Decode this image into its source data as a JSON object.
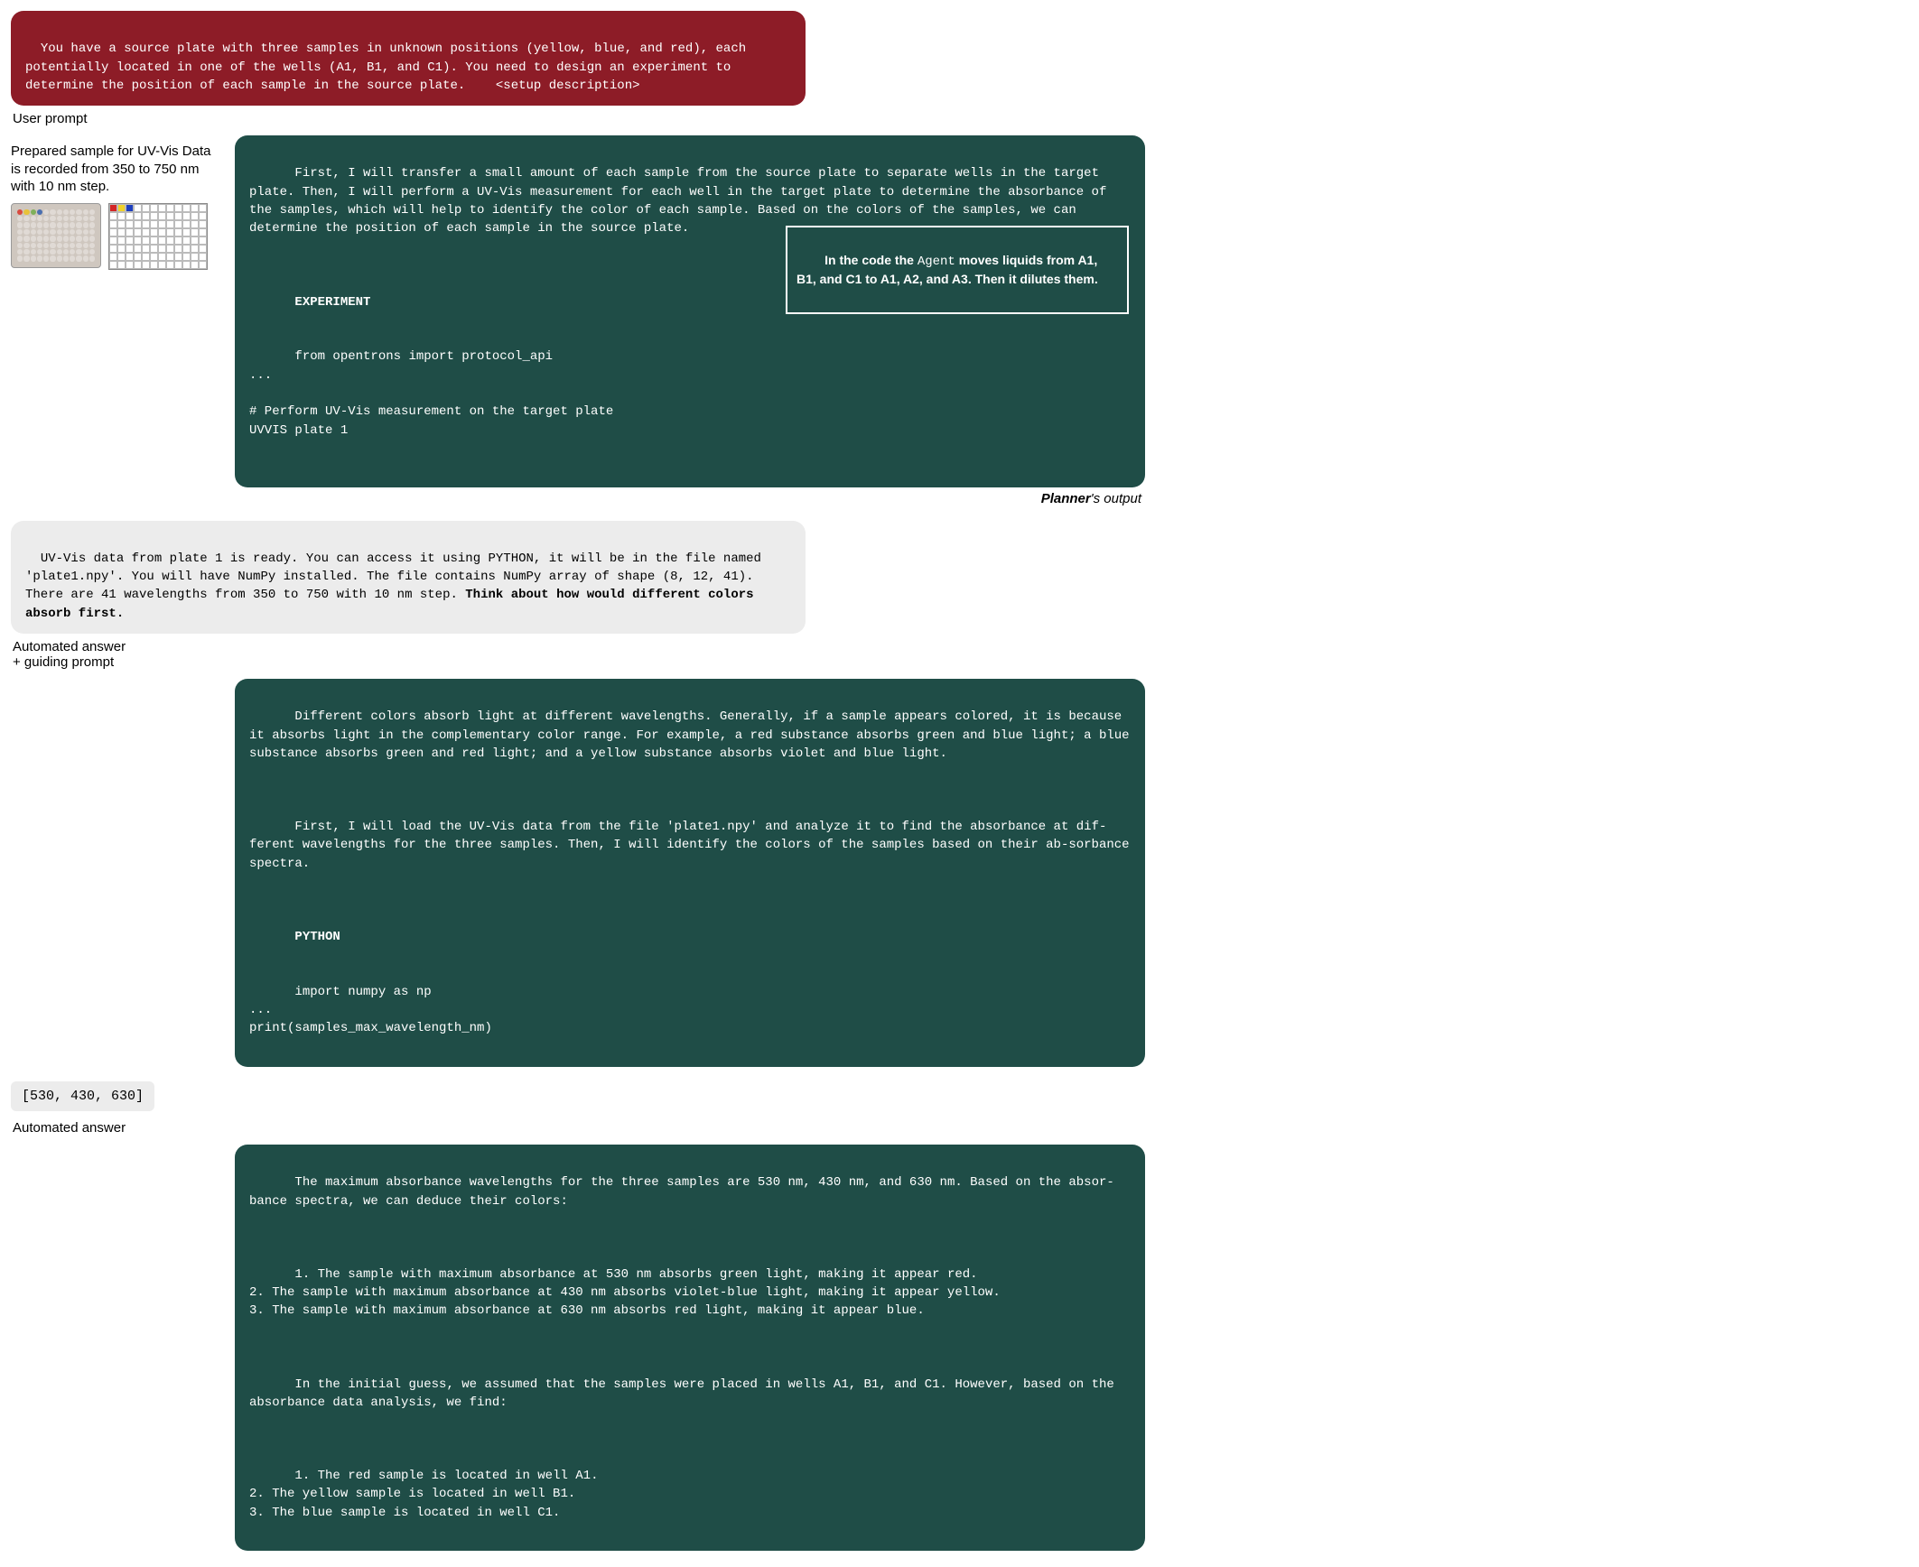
{
  "colors": {
    "user_bg": "#8d1c27",
    "planner_bg": "#1f4d47",
    "system_bg": "#ececec",
    "text_light": "#ffffff",
    "text_dark": "#000000"
  },
  "user_prompt": {
    "text": "You have a source plate with three samples in unknown positions (yellow, blue, and red), each potentially located in one of the wells (A1, B1, and C1). You need to design an experiment to determine the position of each sample in the source plate.    <setup description>"
  },
  "labels": {
    "user_prompt": "User prompt",
    "planner_output": "Planner's output",
    "automated_guiding": "Automated answer\n+ guiding prompt",
    "automated_answer": "Automated answer"
  },
  "sample_panel": {
    "caption": "Prepared sample for UV-Vis Data is recorded from 350 to 750 nm with 10 nm step.",
    "schematic_colored_wells": [
      "red",
      "yellow",
      "blue"
    ]
  },
  "planner_1": {
    "para": "First, I will transfer a small amount of each sample from the source plate to separate wells in the target plate. Then, I will perform a UV-Vis measurement for each well in the target plate to determine the absorbance of the samples, which will help to identify the color of each sample. Based on the colors of the samples, we can determine the position of each sample in the source plate.",
    "code_hdr": "EXPERIMENT",
    "code": "from opentrons import protocol_api\n...\n\n# Perform UV-Vis measurement on the target plate\nUVVIS plate 1",
    "callout_prefix": "In the code the ",
    "callout_agent": "Agent",
    "callout_rest": " moves liquids from A1, B1, and C1 to A1, A2, and A3. Then it dilutes them."
  },
  "system_1": {
    "text_plain": "UV-Vis data from plate 1 is ready. You can access it using PYTHON, it will be in the file named 'plate1.npy'. You will have NumPy installed. The file contains NumPy array of shape (8, 12, 41). There are 41 wavelengths from 350 to 750 with 10 nm step. ",
    "text_bold": "Think about how would different colors absorb first."
  },
  "planner_2": {
    "para1": "Different colors absorb light at different wavelengths. Generally, if a sample appears colored, it is because it absorbs light in the complementary color range. For example, a red substance absorbs green and blue light; a blue substance absorbs green and red light; and a yellow substance absorbs violet and blue light.",
    "para2": "First, I will load the UV-Vis data from the file 'plate1.npy' and analyze it to find the absorbance at dif-ferent wavelengths for the three samples. Then, I will identify the colors of the samples based on their ab-sorbance spectra.",
    "code_hdr": "PYTHON",
    "code": "import numpy as np\n...\nprint(samples_max_wavelength_nm)"
  },
  "result_small": "[530, 430, 630]",
  "planner_3": {
    "intro": "The maximum absorbance wavelengths for the three samples are 530 nm, 430 nm, and 630 nm. Based on the absor-bance spectra, we can deduce their colors:",
    "list1": "1. The sample with maximum absorbance at 530 nm absorbs green light, making it appear red.\n2. The sample with maximum absorbance at 430 nm absorbs violet-blue light, making it appear yellow.\n3. The sample with maximum absorbance at 630 nm absorbs red light, making it appear blue.",
    "mid": "In the initial guess, we assumed that the samples were placed in wells A1, B1, and C1. However, based on the absorbance data analysis, we find:",
    "list2": "1. The red sample is located in well A1.\n2. The yellow sample is located in well B1.\n3. The blue sample is located in well C1."
  }
}
